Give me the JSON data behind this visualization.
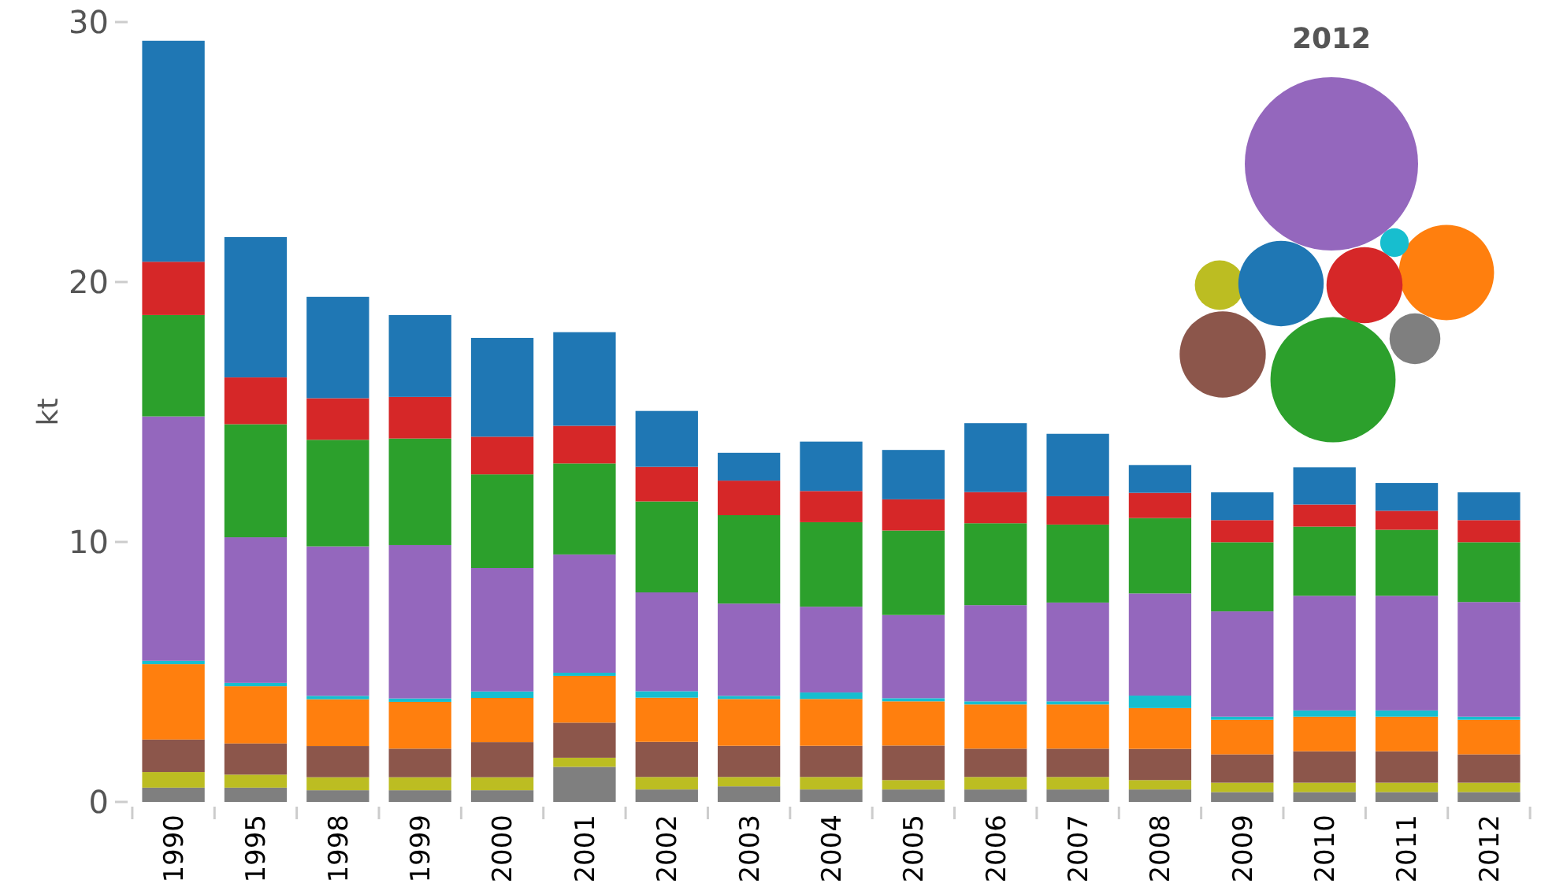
{
  "chart_data": {
    "type": "bar",
    "stacked": true,
    "ylabel": "kt",
    "ylim": [
      0,
      30
    ],
    "yticks": [
      0,
      10,
      20,
      30
    ],
    "grid": false,
    "categories": [
      "1990",
      "1995",
      "1998",
      "1999",
      "2000",
      "2001",
      "2002",
      "2003",
      "2004",
      "2005",
      "2006",
      "2007",
      "2008",
      "2009",
      "2010",
      "2011",
      "2012"
    ],
    "annotations": [
      "2012"
    ],
    "series": [
      {
        "color": "#7f7f7f",
        "values": [
          0.55,
          0.55,
          0.45,
          0.45,
          0.45,
          1.35,
          0.48,
          0.6,
          0.48,
          0.48,
          0.48,
          0.48,
          0.48,
          0.38,
          0.38,
          0.38,
          0.38
        ]
      },
      {
        "color": "#bcbd22",
        "values": [
          0.6,
          0.5,
          0.5,
          0.5,
          0.5,
          0.35,
          0.48,
          0.36,
          0.48,
          0.36,
          0.48,
          0.48,
          0.36,
          0.36,
          0.36,
          0.36,
          0.36
        ]
      },
      {
        "color": "#8c564b",
        "values": [
          1.25,
          1.2,
          1.2,
          1.1,
          1.35,
          1.35,
          1.35,
          1.2,
          1.2,
          1.33,
          1.09,
          1.09,
          1.2,
          1.09,
          1.21,
          1.21,
          1.09
        ]
      },
      {
        "color": "#ff7f0e",
        "values": [
          2.9,
          2.2,
          1.8,
          1.8,
          1.7,
          1.8,
          1.7,
          1.8,
          1.8,
          1.7,
          1.7,
          1.7,
          1.57,
          1.33,
          1.33,
          1.33,
          1.33
        ]
      },
      {
        "color": "#17becf",
        "values": [
          0.13,
          0.13,
          0.13,
          0.13,
          0.25,
          0.12,
          0.25,
          0.12,
          0.25,
          0.12,
          0.12,
          0.12,
          0.48,
          0.12,
          0.24,
          0.24,
          0.12
        ]
      },
      {
        "color": "#9467bd",
        "values": [
          9.4,
          5.6,
          5.75,
          5.9,
          4.75,
          4.55,
          3.8,
          3.55,
          3.3,
          3.2,
          3.7,
          3.8,
          3.93,
          4.05,
          4.41,
          4.41,
          4.41
        ]
      },
      {
        "color": "#2ca02c",
        "values": [
          3.9,
          4.35,
          4.1,
          4.1,
          3.6,
          3.5,
          3.5,
          3.4,
          3.25,
          3.25,
          3.15,
          3.0,
          2.9,
          2.66,
          2.66,
          2.54,
          2.3
        ]
      },
      {
        "color": "#d62728",
        "values": [
          2.05,
          1.8,
          1.6,
          1.6,
          1.45,
          1.45,
          1.33,
          1.33,
          1.2,
          1.2,
          1.2,
          1.09,
          0.97,
          0.85,
          0.85,
          0.73,
          0.85
        ]
      },
      {
        "color": "#1f77b4",
        "values": [
          8.5,
          5.4,
          3.9,
          3.15,
          3.8,
          3.6,
          2.15,
          1.07,
          1.9,
          1.9,
          2.65,
          2.4,
          1.07,
          1.07,
          1.43,
          1.07,
          1.07
        ]
      }
    ]
  }
}
